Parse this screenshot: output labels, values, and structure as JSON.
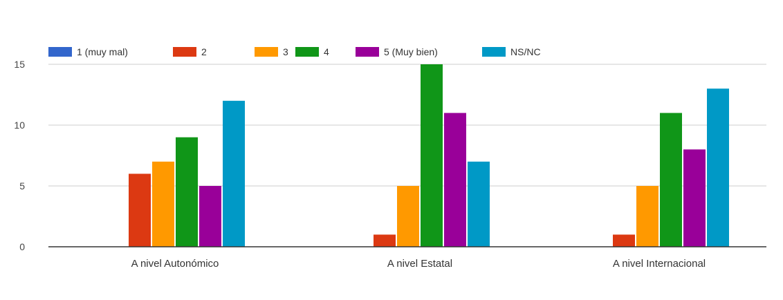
{
  "chart_data": {
    "type": "bar",
    "title": "",
    "xlabel": "",
    "ylabel": "",
    "categories": [
      "A nivel Autonómico",
      "A nivel Estatal",
      "A nivel Internacional"
    ],
    "ylim": [
      0,
      15
    ],
    "yticks": [
      0,
      5,
      10,
      15
    ],
    "grid": true,
    "legend_position": "top-left",
    "series": [
      {
        "name": "1 (muy mal)",
        "color": "#3366cc",
        "values": [
          0,
          0,
          0
        ]
      },
      {
        "name": "2",
        "color": "#dc3912",
        "values": [
          6,
          1,
          1
        ]
      },
      {
        "name": "3",
        "color": "#ff9900",
        "values": [
          7,
          5,
          5
        ]
      },
      {
        "name": "4",
        "color": "#109618",
        "values": [
          9,
          15,
          11
        ]
      },
      {
        "name": "5 (Muy bien)",
        "color": "#990099",
        "values": [
          5,
          11,
          8
        ]
      },
      {
        "name": "NS/NC",
        "color": "#0099c6",
        "values": [
          12,
          7,
          13
        ]
      }
    ]
  }
}
